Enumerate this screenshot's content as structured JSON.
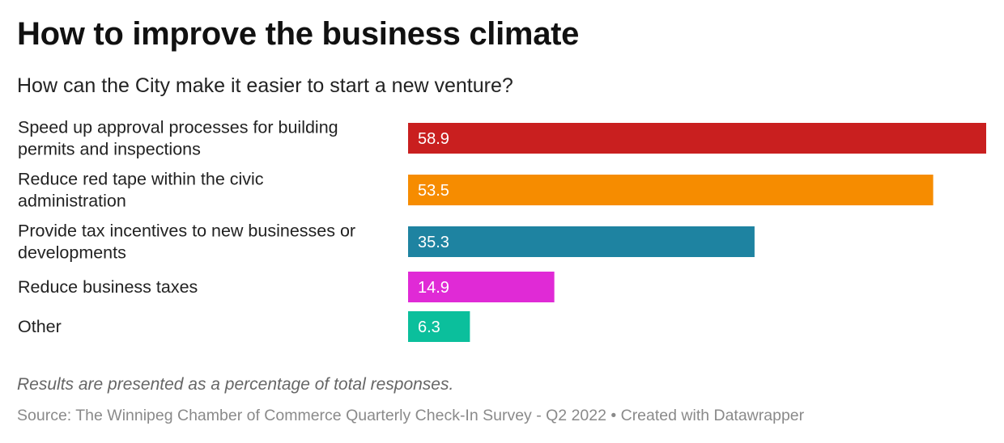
{
  "header": {
    "title": "How to improve the business climate",
    "subtitle": "How can the City make it easier to start a new venture?"
  },
  "chart_data": {
    "type": "bar",
    "orientation": "horizontal",
    "categories": [
      [
        "Speed up approval processes for building",
        "permits and inspections"
      ],
      [
        "Reduce red tape within the civic",
        "administration"
      ],
      [
        "Provide tax incentives to new businesses or",
        "developments"
      ],
      [
        "Reduce business taxes"
      ],
      [
        "Other"
      ]
    ],
    "values": [
      58.9,
      53.5,
      35.3,
      14.9,
      6.3
    ],
    "value_labels": [
      "58.9",
      "53.5",
      "35.3",
      "14.9",
      "6.3"
    ],
    "colors": [
      "#c91f1f",
      "#f68c00",
      "#1e83a1",
      "#e02ad6",
      "#0bbf9c"
    ],
    "xlim": [
      0,
      58.9
    ],
    "grid": false,
    "legend": "none"
  },
  "footer": {
    "note": "Results are presented as a percentage of total responses.",
    "source": "Source: The Winnipeg Chamber of Commerce Quarterly Check-In Survey - Q2 2022 • Created with Datawrapper"
  }
}
